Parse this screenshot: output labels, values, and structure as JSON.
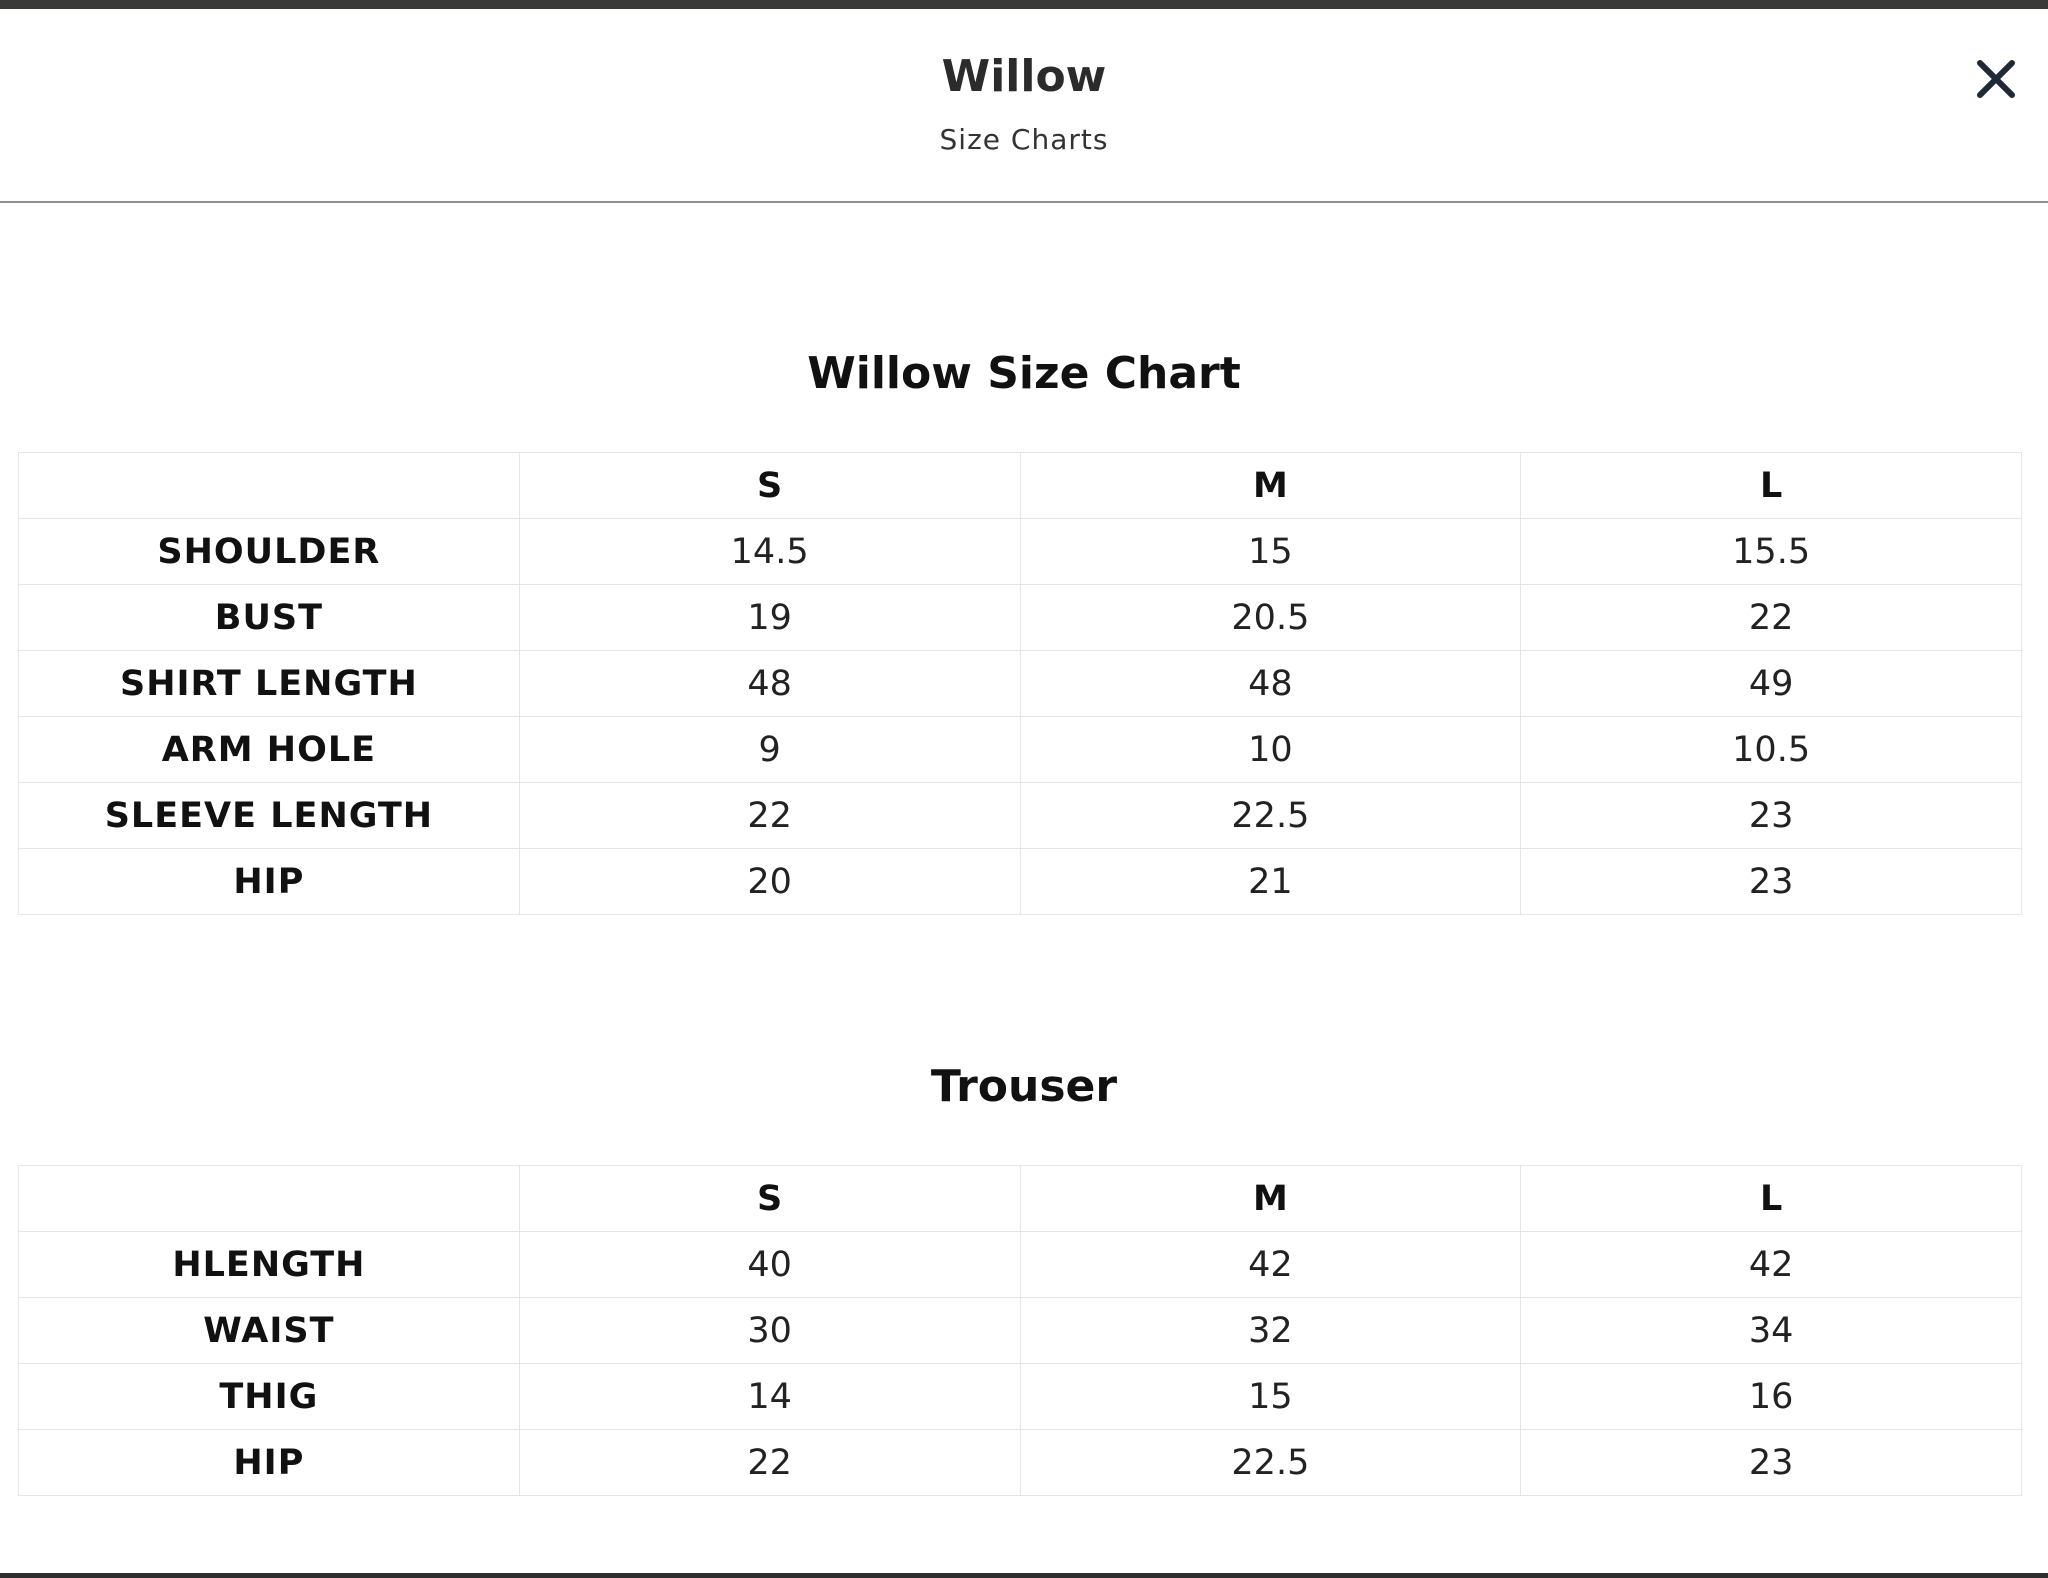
{
  "header": {
    "title": "Willow",
    "subtitle": "Size Charts",
    "close_icon": "close-icon"
  },
  "tables": [
    {
      "title": "Willow Size Chart",
      "columns": [
        "",
        "S",
        "M",
        "L"
      ],
      "rows": [
        {
          "label": "SHOULDER",
          "values": [
            "14.5",
            "15",
            "15.5"
          ]
        },
        {
          "label": "BUST",
          "values": [
            "19",
            "20.5",
            "22"
          ]
        },
        {
          "label": "SHIRT LENGTH",
          "values": [
            "48",
            "48",
            "49"
          ]
        },
        {
          "label": "ARM HOLE",
          "values": [
            "9",
            "10",
            "10.5"
          ]
        },
        {
          "label": "SLEEVE LENGTH",
          "values": [
            "22",
            "22.5",
            "23"
          ]
        },
        {
          "label": "HIP",
          "values": [
            "20",
            "21",
            "23"
          ]
        }
      ]
    },
    {
      "title": "Trouser",
      "columns": [
        "",
        "S",
        "M",
        "L"
      ],
      "rows": [
        {
          "label": "HLENGTH",
          "values": [
            "40",
            "42",
            "42"
          ]
        },
        {
          "label": "WAIST",
          "values": [
            "30",
            "32",
            "34"
          ]
        },
        {
          "label": "THIG",
          "values": [
            "14",
            "15",
            "16"
          ]
        },
        {
          "label": "HIP",
          "values": [
            "22",
            "22.5",
            "23"
          ]
        }
      ]
    }
  ]
}
